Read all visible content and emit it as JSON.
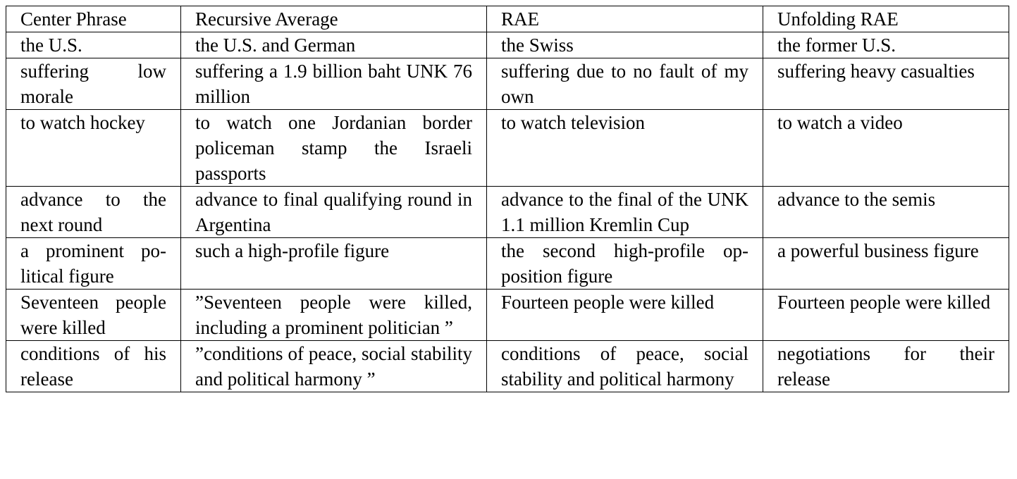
{
  "headers": [
    "Center Phrase",
    "Recursive Average",
    "RAE",
    "Unfolding RAE"
  ],
  "rows": [
    [
      "the U.S.",
      "the U.S. and German",
      "the Swiss",
      "the former U.S."
    ],
    [
      "suffering low morale",
      "suffering a 1.9 billion baht UNK 76 million",
      "suffering due to no fault of my own",
      "suffering heavy casual­ties"
    ],
    [
      "to watch hockey",
      "to watch one Jordanian bor­der policeman stamp the Is­raeli passports",
      "to watch television",
      "to watch a video"
    ],
    [
      "advance to the next round",
      "advance to final qualifying round in Argentina",
      "advance to the final of the UNK 1.1 million Kremlin Cup",
      "advance to the semis"
    ],
    [
      "a prominent po­litical figure",
      "such a high-profile figure",
      "the second high-profile op­position figure",
      "a powerful business fig­ure"
    ],
    [
      "Seventeen peo­ple were killed",
      "”Seventeen people were killed, including a prominent politician ”",
      "Fourteen people were killed",
      "Fourteen people were killed"
    ],
    [
      "conditions of his release",
      "”conditions of peace, social stability and political har­mony ”",
      "conditions of peace, social stability and political har­mony",
      "negotiations for their release"
    ]
  ]
}
